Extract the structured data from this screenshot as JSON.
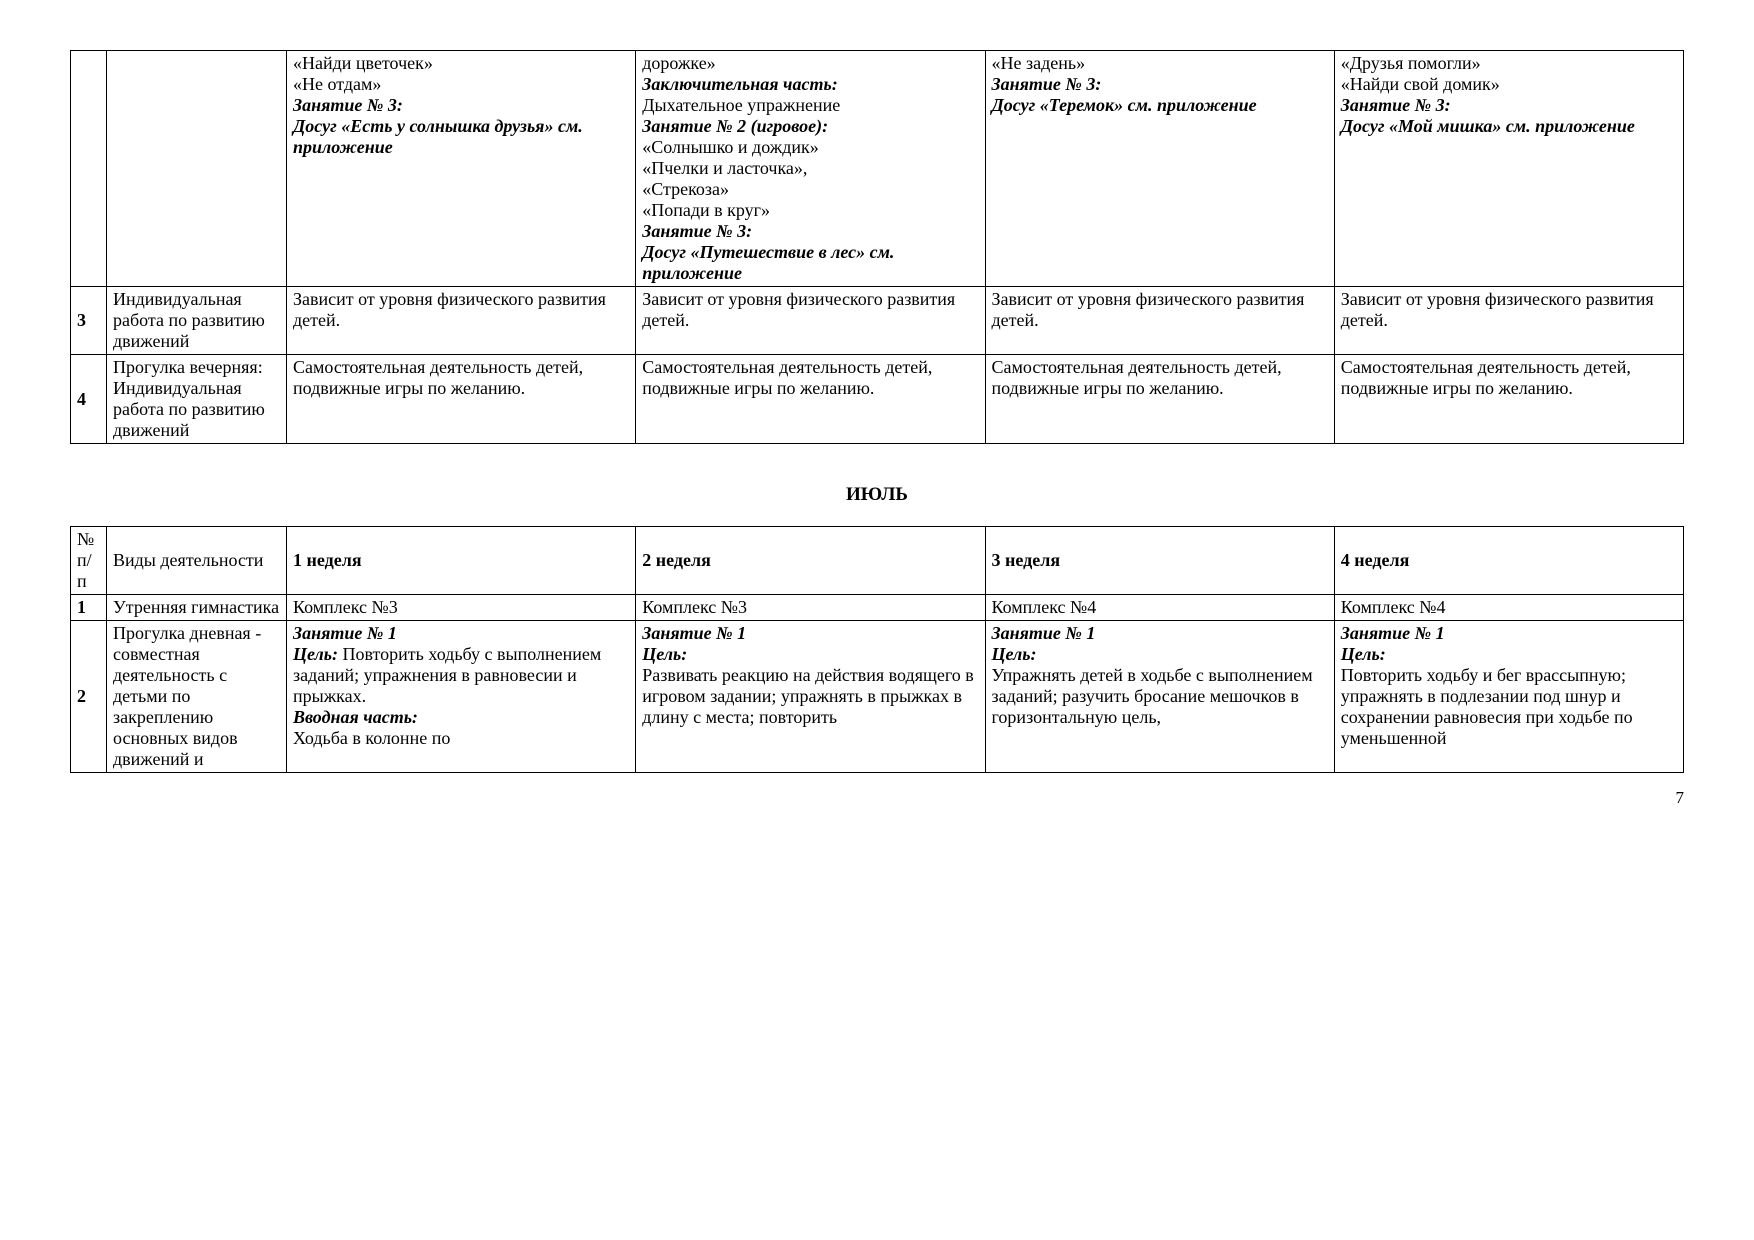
{
  "table1": {
    "row_top": {
      "num": "",
      "activity": "",
      "w1": [
        {
          "t": "«Найди цветочек»"
        },
        {
          "t": "«Не отдам»"
        },
        {
          "t": "Занятие № 3:",
          "cls": "bi"
        },
        {
          "t": "Досуг «Есть  у солнышка друзья» см. приложение",
          "cls": "bi"
        }
      ],
      "w2": [
        {
          "t": "дорожке»"
        },
        {
          "t": "Заключительная часть:",
          "cls": "bi"
        },
        {
          "t": "Дыхательное упражнение"
        },
        {
          "t": "Занятие № 2 (игровое):",
          "cls": "bi"
        },
        {
          "t": " «Солнышко и дождик»"
        },
        {
          "t": "«Пчелки и ласточка»,"
        },
        {
          "t": "«Стрекоза»"
        },
        {
          "t": "«Попади в круг»"
        },
        {
          "t": "Занятие № 3:",
          "cls": "bi"
        },
        {
          "t": "Досуг «Путешествие в лес»  см. приложение",
          "cls": "bi"
        }
      ],
      "w3": [
        {
          "t": "«Не задень»"
        },
        {
          "t": "Занятие № 3:",
          "cls": "bi"
        },
        {
          "t": "Досуг «Теремок» см. приложение",
          "cls": "bi"
        }
      ],
      "w4": [
        {
          "t": "«Друзья помогли»"
        },
        {
          "t": "«Найди свой домик»"
        },
        {
          "t": "Занятие № 3:",
          "cls": "bi"
        },
        {
          "t": "Досуг «Мой мишка» см. приложение",
          "cls": "bi"
        }
      ]
    },
    "row3": {
      "num": "3",
      "activity": "Индивидуальная работа по развитию движений",
      "w1": "Зависит от уровня физического развития детей.",
      "w2": "Зависит от уровня физического развития детей.",
      "w3": "Зависит от уровня физического развития детей.",
      "w4": "Зависит от уровня физического развития детей."
    },
    "row4": {
      "num": "4",
      "activity": "Прогулка вечерняя: Индивидуальная работа по развитию движений",
      "w1": "Самостоятельная деятельность детей, подвижные игры по желанию.",
      "w2": "Самостоятельная деятельность детей, подвижные игры по желанию.",
      "w3": "Самостоятельная деятельность детей, подвижные игры по желанию.",
      "w4": "Самостоятельная деятельность детей, подвижные игры по желанию."
    }
  },
  "month_title": "ИЮЛЬ",
  "table2": {
    "header": {
      "num": "№ п/п",
      "activity": "Виды деятельности",
      "w1": "1 неделя",
      "w2": "2 неделя",
      "w3": "3 неделя",
      "w4": "4 неделя"
    },
    "row1": {
      "num": "1",
      "activity": "Утренняя гимнастика",
      "w1": "Комплекс №3",
      "w2": "Комплекс №3",
      "w3": "Комплекс №4",
      "w4": "Комплекс №4"
    },
    "row2": {
      "num": "2",
      "activity": "Прогулка дневная - совместная деятельность с детьми по закреплению основных видов движений и",
      "w1": [
        {
          "t": "Занятие № 1",
          "cls": "bi"
        },
        {
          "pre": "Цель:",
          "precls": "bi",
          "t": " Повторить ходьбу с выполнением заданий; упражнения в равновесии и прыжках."
        },
        {
          "t": "Вводная часть:",
          "cls": "bi"
        },
        {
          "t": "Ходьба в колонне по"
        }
      ],
      "w2": [
        {
          "t": "Занятие № 1",
          "cls": "bi"
        },
        {
          "t": "Цель:",
          "cls": "bi"
        },
        {
          "t": "Развивать реакцию на действия водящего в игровом задании; уп­ражнять в прыжках в длину с места; повторить"
        }
      ],
      "w3": [
        {
          "t": "Занятие № 1",
          "cls": "bi"
        },
        {
          "t": "Цель:",
          "cls": "bi"
        },
        {
          "t": "Упражнять детей в ходьбе с выполнением заданий; разучить бросание мешочков в горизонтальную цель,"
        }
      ],
      "w4": [
        {
          "t": "Занятие № 1",
          "cls": "bi"
        },
        {
          "t": "Цель:",
          "cls": "bi"
        },
        {
          "t": "Повторить ходьбу и бег врассыпную; упражнять в подлезании под шнур и сохранении равновесия при ходьбе по уменьшенной"
        }
      ]
    }
  },
  "page_number": "7"
}
